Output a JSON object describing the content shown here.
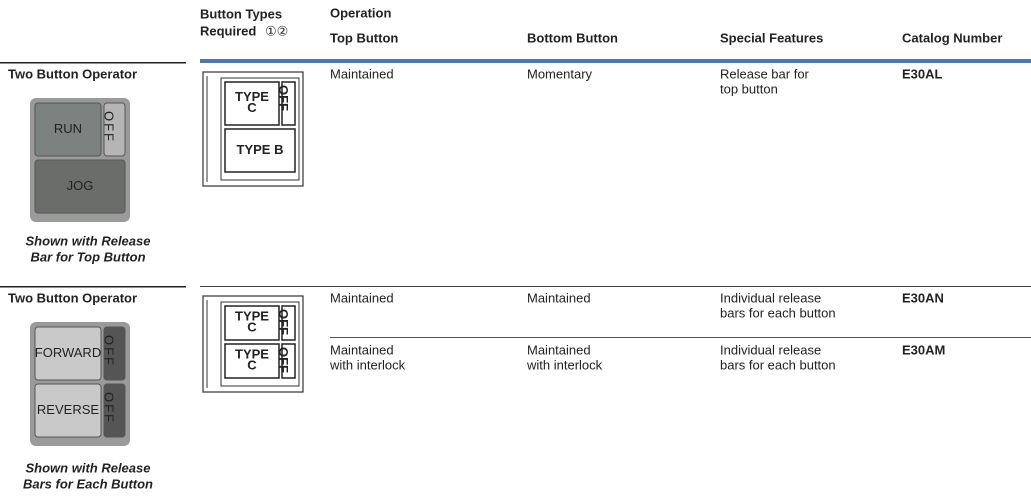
{
  "header": {
    "button_types": [
      "Button Types",
      "Required"
    ],
    "footnote_marks": "①②",
    "operation": "Operation",
    "top_button": "Top Button",
    "bottom_button": "Bottom Button",
    "special_features": "Special Features",
    "catalog_number": "Catalog Number"
  },
  "sections": [
    {
      "title": "Two Button Operator",
      "photo": {
        "buttons": [
          "RUN",
          "JOG"
        ],
        "off": [
          "OFF"
        ]
      },
      "caption": [
        "Shown with Release",
        "Bar for Top Button"
      ],
      "diagram": {
        "buttons": [
          [
            "TYPE",
            "C"
          ],
          [
            "TYPE B"
          ]
        ],
        "off": [
          "OFF"
        ]
      },
      "rows": [
        {
          "top_button": [
            "Maintained"
          ],
          "bottom_button": [
            "Momentary"
          ],
          "special_features": [
            "Release bar for",
            "top button"
          ],
          "catalog_number": "E30AL"
        }
      ]
    },
    {
      "title": "Two Button Operator",
      "photo": {
        "buttons": [
          "FORWARD",
          "REVERSE"
        ],
        "off": [
          "OFF",
          "OFF"
        ]
      },
      "caption": [
        "Shown with Release",
        "Bars for Each Button"
      ],
      "diagram": {
        "buttons": [
          [
            "TYPE",
            "C"
          ],
          [
            "TYPE",
            "C"
          ]
        ],
        "off": [
          "OFF",
          "OFF"
        ]
      },
      "rows": [
        {
          "top_button": [
            "Maintained"
          ],
          "bottom_button": [
            "Maintained"
          ],
          "special_features": [
            "Individual release",
            "bars for each button"
          ],
          "catalog_number": "E30AN"
        },
        {
          "top_button": [
            "Maintained",
            "with interlock"
          ],
          "bottom_button": [
            "Maintained",
            "with interlock"
          ],
          "special_features": [
            "Individual release",
            "bars for each button"
          ],
          "catalog_number": "E30AM"
        }
      ]
    }
  ]
}
